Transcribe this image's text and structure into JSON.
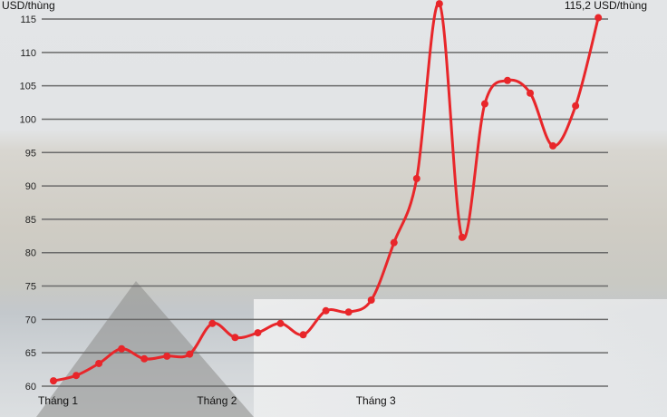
{
  "chart_data": {
    "type": "line",
    "ylabel": "USD/thùng",
    "ylim": [
      60,
      115
    ],
    "yticks": [
      60,
      65,
      70,
      75,
      80,
      85,
      90,
      95,
      100,
      105,
      110,
      115
    ],
    "x_labels": [
      {
        "label": "Tháng 1",
        "index": 0
      },
      {
        "label": "Tháng 2",
        "index": 7
      },
      {
        "label": "Tháng 3",
        "index": 14
      }
    ],
    "series": [
      {
        "color": "#e8262a",
        "values": [
          60.8,
          61.6,
          63.4,
          65.6,
          64.1,
          64.5,
          64.8,
          69.4,
          67.3,
          68.0,
          69.4,
          67.7,
          71.3,
          71.1,
          72.9,
          81.5,
          91.1,
          117.3,
          82.3,
          102.3,
          105.8,
          103.9,
          96.0,
          102.0,
          115.2
        ]
      }
    ],
    "annotation": "115,2 USD/thùng",
    "grid": true,
    "gridline_color": "#6a6a6a"
  }
}
